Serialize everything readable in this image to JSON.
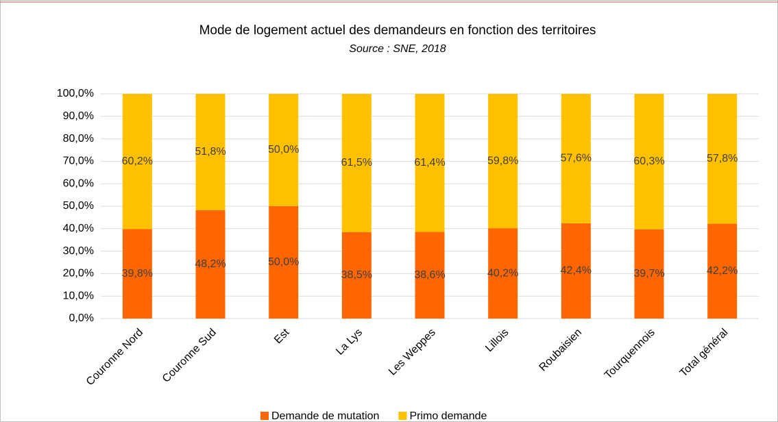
{
  "chart_data": {
    "type": "stacked_bar",
    "title": "Mode de logement actuel des demandeurs en fonction des territoires",
    "subtitle": "Source : SNE, 2018",
    "categories": [
      "Couronne Nord",
      "Couronne Sud",
      "Est",
      "La Lys",
      "Les Weppes",
      "Lillois",
      "Roubaisien",
      "Tourquennois",
      "Total général"
    ],
    "series": [
      {
        "name": "Demande de mutation",
        "color": "#ff6600",
        "values": [
          39.8,
          48.2,
          50.0,
          38.5,
          38.6,
          40.2,
          42.4,
          39.7,
          42.2
        ],
        "value_labels": [
          "39,8%",
          "48,2%",
          "50,0%",
          "38,5%",
          "38,6%",
          "40,2%",
          "42,4%",
          "39,7%",
          "42,2%"
        ]
      },
      {
        "name": "Primo demande",
        "color": "#ffc000",
        "values": [
          60.2,
          51.8,
          50.0,
          61.5,
          61.4,
          59.8,
          57.6,
          60.3,
          57.8
        ],
        "value_labels": [
          "60,2%",
          "51,8%",
          "50,0%",
          "61,5%",
          "61,4%",
          "59,8%",
          "57,6%",
          "60,3%",
          "57,8%"
        ]
      }
    ],
    "ylim": [
      0,
      100
    ],
    "yticks": [
      {
        "value": 0,
        "label": "0,0%"
      },
      {
        "value": 10,
        "label": "10,0%"
      },
      {
        "value": 20,
        "label": "20,0%"
      },
      {
        "value": 30,
        "label": "30,0%"
      },
      {
        "value": 40,
        "label": "40,0%"
      },
      {
        "value": 50,
        "label": "50,0%"
      },
      {
        "value": 60,
        "label": "60,0%"
      },
      {
        "value": 70,
        "label": "70,0%"
      },
      {
        "value": 80,
        "label": "80,0%"
      },
      {
        "value": 90,
        "label": "90,0%"
      },
      {
        "value": 100,
        "label": "100,0%"
      }
    ],
    "grid": true,
    "legend": "bottom"
  }
}
